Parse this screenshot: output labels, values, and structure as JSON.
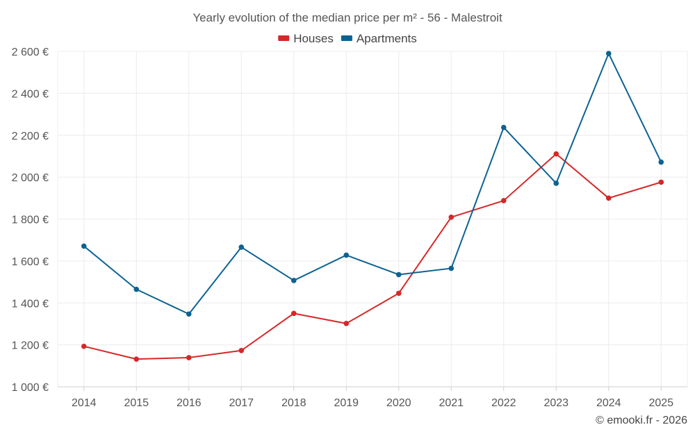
{
  "chart_data": {
    "type": "line",
    "title": "Yearly evolution of the median price per m² - 56 - Malestroit",
    "categories": [
      "2014",
      "2015",
      "2016",
      "2017",
      "2018",
      "2019",
      "2020",
      "2021",
      "2022",
      "2023",
      "2024",
      "2025"
    ],
    "series": [
      {
        "name": "Houses",
        "color": "#d62728",
        "values": [
          1193,
          1132,
          1139,
          1173,
          1350,
          1302,
          1446,
          1809,
          1888,
          2111,
          1900,
          1976
        ]
      },
      {
        "name": "Apartments",
        "color": "#0c6292",
        "values": [
          1671,
          1465,
          1347,
          1666,
          1507,
          1628,
          1535,
          1565,
          2237,
          1971,
          2590,
          2072
        ]
      }
    ],
    "ylim": [
      1000,
      2600
    ],
    "yticks": [
      {
        "value": 1000,
        "label": "1 000 €"
      },
      {
        "value": 1200,
        "label": "1 200 €"
      },
      {
        "value": 1400,
        "label": "1 400 €"
      },
      {
        "value": 1600,
        "label": "1 600 €"
      },
      {
        "value": 1800,
        "label": "1 800 €"
      },
      {
        "value": 2000,
        "label": "2 000 €"
      },
      {
        "value": 2200,
        "label": "2 200 €"
      },
      {
        "value": 2400,
        "label": "2 400 €"
      },
      {
        "value": 2600,
        "label": "2 600 €"
      }
    ],
    "grid": true,
    "legend_position": "top-center",
    "credit": "© emooki.fr - 2026"
  }
}
